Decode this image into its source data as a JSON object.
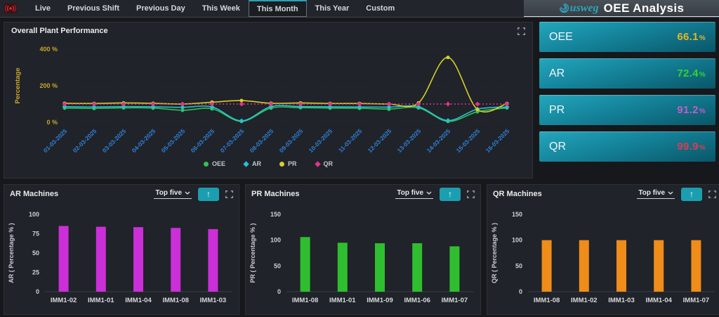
{
  "navbar": {
    "tabs": [
      {
        "label": "Live"
      },
      {
        "label": "Previous Shift"
      },
      {
        "label": "Previous Day"
      },
      {
        "label": "This Week"
      },
      {
        "label": "This Month"
      },
      {
        "label": "This Year"
      },
      {
        "label": "Custom"
      }
    ],
    "active_tab": "This Month",
    "brand": {
      "logo": "usweg",
      "title": "OEE Analysis"
    }
  },
  "performance_panel": {
    "title": "Overall Plant Performance"
  },
  "kpi_cards": [
    {
      "label": "OEE",
      "value": "66.1",
      "unit": "%",
      "value_color": "#e2b62c"
    },
    {
      "label": "AR",
      "value": "72.4",
      "unit": "%",
      "value_color": "#35d135"
    },
    {
      "label": "PR",
      "value": "91.2",
      "unit": "%",
      "value_color": "#c65bc9"
    },
    {
      "label": "QR",
      "value": "99.9",
      "unit": "%",
      "value_color": "#de3b50"
    }
  ],
  "machine_panels": [
    {
      "title": "AR Machines",
      "dropdown": "Top five"
    },
    {
      "title": "PR Machines",
      "dropdown": "Top five"
    },
    {
      "title": "QR Machines",
      "dropdown": "Top five"
    }
  ],
  "ui": {
    "up_arrow": "↑"
  },
  "chart_data": [
    {
      "type": "line",
      "title": "Overall Plant Performance",
      "xlabel": "",
      "ylabel": "Percentage",
      "ylim": [
        0,
        400
      ],
      "yticks": [
        0,
        200,
        400
      ],
      "ytick_suffix": " %",
      "grid": "dotted-horizontal",
      "legend_position": "bottom",
      "axis_colors": {
        "y": "#c9a62b",
        "x": "#2e7fd6"
      },
      "categories": [
        "01-03-2025",
        "02-03-2025",
        "03-03-2025",
        "04-03-2025",
        "05-03-2025",
        "06-03-2025",
        "07-03-2025",
        "08-03-2025",
        "09-03-2025",
        "10-03-2025",
        "11-03-2025",
        "12-03-2025",
        "13-03-2025",
        "14-03-2025",
        "15-03-2025",
        "16-03-2025"
      ],
      "series": [
        {
          "name": "OEE",
          "color": "#2fc25b",
          "marker": "circle",
          "values": [
            78,
            76,
            79,
            78,
            66,
            74,
            5,
            78,
            80,
            78,
            77,
            72,
            79,
            5,
            58,
            79
          ]
        },
        {
          "name": "AR",
          "color": "#27c2d4",
          "marker": "diamond",
          "values": [
            86,
            84,
            86,
            85,
            82,
            84,
            8,
            86,
            86,
            85,
            84,
            83,
            85,
            10,
            72,
            84
          ]
        },
        {
          "name": "PR",
          "color": "#d6ce2a",
          "marker": "circle",
          "values": [
            104,
            103,
            106,
            104,
            100,
            110,
            119,
            104,
            106,
            103,
            103,
            100,
            106,
            355,
            70,
            103
          ]
        },
        {
          "name": "QR",
          "color": "#e0358e",
          "marker": "diamond",
          "dash": true,
          "values": [
            100,
            100,
            100,
            100,
            100,
            100,
            100,
            100,
            100,
            100,
            100,
            100,
            100,
            100,
            100,
            100
          ]
        }
      ]
    },
    {
      "type": "bar",
      "panel": "AR Machines",
      "ylabel": "AR ( Percentage % )",
      "ylim": [
        0,
        100
      ],
      "yticks": [
        0,
        25,
        50,
        75,
        100
      ],
      "categories": [
        "IMM1-02",
        "IMM1-01",
        "IMM1-04",
        "IMM1-08",
        "IMM1-03"
      ],
      "values": [
        85,
        84,
        83.5,
        82.5,
        81
      ],
      "bar_color": "#cb2fd8"
    },
    {
      "type": "bar",
      "panel": "PR Machines",
      "ylabel": "PR ( Percentage % )",
      "ylim": [
        0,
        150
      ],
      "yticks": [
        0,
        50,
        100,
        150
      ],
      "categories": [
        "IMM1-08",
        "IMM1-01",
        "IMM1-09",
        "IMM1-06",
        "IMM1-07"
      ],
      "values": [
        106,
        95,
        94,
        94,
        88
      ],
      "bar_color": "#2fbe2f"
    },
    {
      "type": "bar",
      "panel": "QR Machines",
      "ylabel": "QR ( Percentage % )",
      "ylim": [
        0,
        150
      ],
      "yticks": [
        0,
        50,
        100,
        150
      ],
      "categories": [
        "IMM1-08",
        "IMM1-02",
        "IMM1-03",
        "IMM1-04",
        "IMM1-07"
      ],
      "values": [
        100,
        100,
        100,
        100,
        100
      ],
      "bar_color": "#ef8c1a"
    }
  ]
}
